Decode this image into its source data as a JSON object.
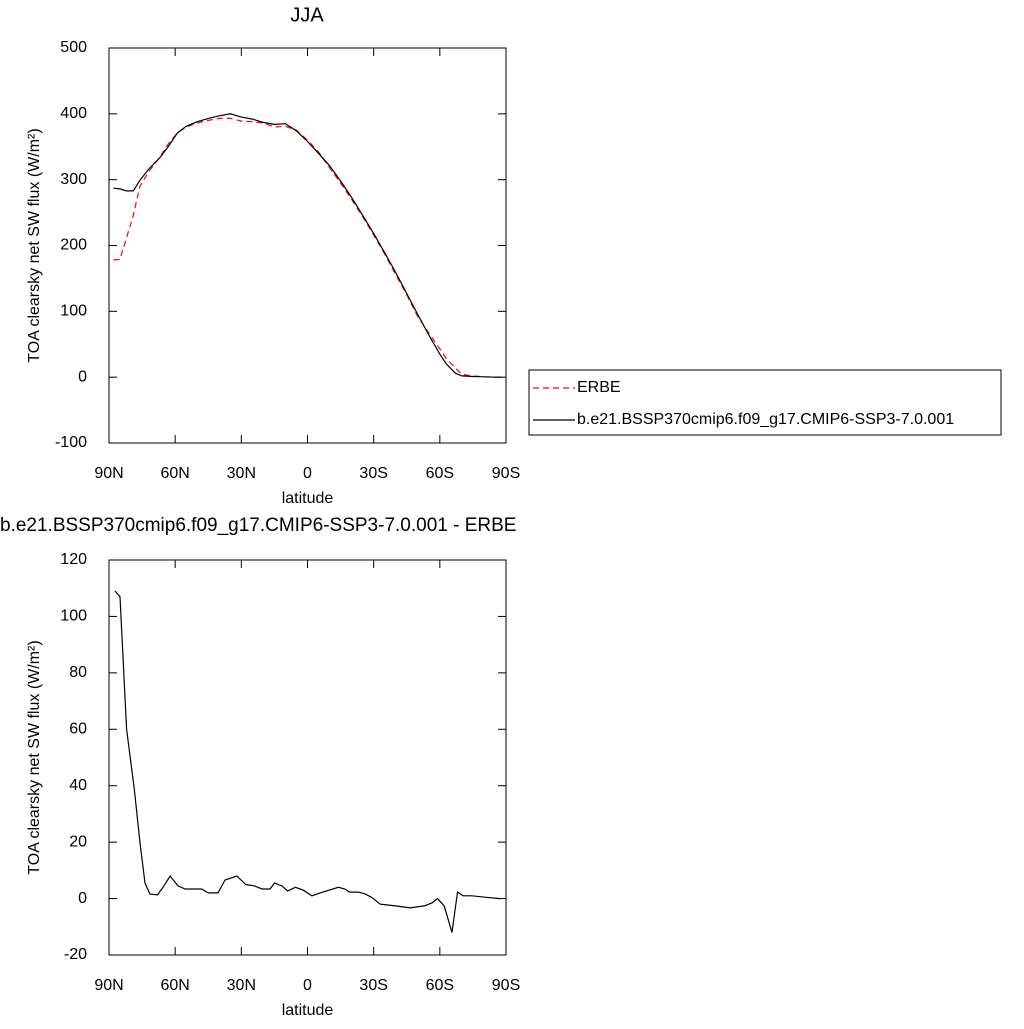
{
  "chart_data": [
    {
      "type": "line",
      "title": "JJA",
      "xlabel": "latitude",
      "ylabel": "TOA clearsky net SW flux (W/m²)",
      "x": [
        88,
        85,
        82,
        79,
        76,
        72,
        67,
        63,
        59,
        55,
        50,
        45,
        40,
        35,
        30,
        25,
        20,
        15,
        10,
        5,
        0,
        -5,
        -10,
        -15,
        -20,
        -25,
        -30,
        -35,
        -40,
        -45,
        -50,
        -55,
        -60,
        -63,
        -67,
        -70,
        -75,
        -80,
        -85,
        -88
      ],
      "series": [
        {
          "name": "ERBE",
          "color": "#ff0000",
          "dash": "dashed",
          "values": [
            178,
            179,
            212,
            246,
            290,
            312,
            334,
            355,
            371,
            380,
            386,
            390,
            393,
            393,
            389,
            388,
            386,
            380,
            381,
            375,
            360,
            342,
            318,
            295,
            270,
            244,
            216,
            187,
            156,
            125,
            92,
            67,
            43,
            28,
            14,
            4,
            2,
            0.5,
            0,
            0
          ]
        },
        {
          "name": "b.e21.BSSP370cmip6.f09_g17.CMIP6-SSP3-7.0.001",
          "color": "#000000",
          "dash": "solid",
          "values": [
            287,
            286,
            283,
            283,
            299,
            316,
            333,
            351,
            371,
            381,
            388,
            393,
            397,
            400,
            395,
            392,
            387,
            384,
            385,
            374,
            358,
            340,
            321,
            298,
            273,
            246,
            218,
            189,
            159,
            127,
            95,
            64,
            35,
            20,
            6,
            2,
            1,
            0.5,
            0,
            0
          ]
        }
      ],
      "xlim": [
        90,
        -90
      ],
      "xticks": [
        {
          "value": 90,
          "label": "90N"
        },
        {
          "value": 60,
          "label": "60N"
        },
        {
          "value": 30,
          "label": "30N"
        },
        0,
        {
          "value": -30,
          "label": "30S"
        },
        {
          "value": -60,
          "label": "60S"
        },
        {
          "value": -90,
          "label": "90S"
        }
      ],
      "ylim": [
        -100,
        500
      ],
      "yticks": [
        -100,
        0,
        100,
        200,
        300,
        400,
        500
      ],
      "legend": "right"
    },
    {
      "type": "line",
      "title": "b.e21.BSSP370cmip6.f09_g17.CMIP6-SSP3-7.0.001 - ERBE",
      "xlabel": "latitude",
      "ylabel": "TOA clearsky net SW flux (W/m²)",
      "x": [
        87.3,
        85,
        82,
        78.5,
        76,
        73.7,
        71.4,
        68,
        65.5,
        62.3,
        58.7,
        55.5,
        51,
        48,
        45,
        40.6,
        37.4,
        32,
        28,
        24,
        20.6,
        17,
        15,
        11.6,
        9,
        5.5,
        2,
        -2,
        -5.7,
        -14,
        -17,
        -19,
        -23,
        -26,
        -29,
        -33,
        -40,
        -46.5,
        -53,
        -56.5,
        -59,
        -62,
        -65.5,
        -68,
        -70.5,
        -74.6,
        -80.5,
        -87.3
      ],
      "series": [
        {
          "name": null,
          "color": "#000000",
          "dash": "solid",
          "values": [
            109,
            107,
            60,
            38.5,
            20,
            5.5,
            1.6,
            1.3,
            4,
            8,
            4.5,
            3.4,
            3.4,
            3.4,
            2,
            2,
            6.6,
            8,
            5,
            4.5,
            3.4,
            3.4,
            5.5,
            4.5,
            2.7,
            4,
            3,
            1,
            2,
            4,
            3.4,
            2.3,
            2.3,
            1.7,
            0.5,
            -2,
            -2.6,
            -3.3,
            -2.6,
            -1.5,
            0,
            -2.6,
            -12,
            2.3,
            1,
            1,
            0.5,
            0
          ]
        }
      ],
      "xlim": [
        90,
        -90
      ],
      "xticks": [
        {
          "value": 90,
          "label": "90N"
        },
        {
          "value": 60,
          "label": "60N"
        },
        {
          "value": 30,
          "label": "30N"
        },
        0,
        {
          "value": -30,
          "label": "30S"
        },
        {
          "value": -60,
          "label": "60S"
        },
        {
          "value": -90,
          "label": "90S"
        }
      ],
      "ylim": [
        -20,
        120
      ],
      "yticks": [
        -20,
        0,
        20,
        40,
        60,
        80,
        100,
        120
      ],
      "legend": null
    }
  ]
}
